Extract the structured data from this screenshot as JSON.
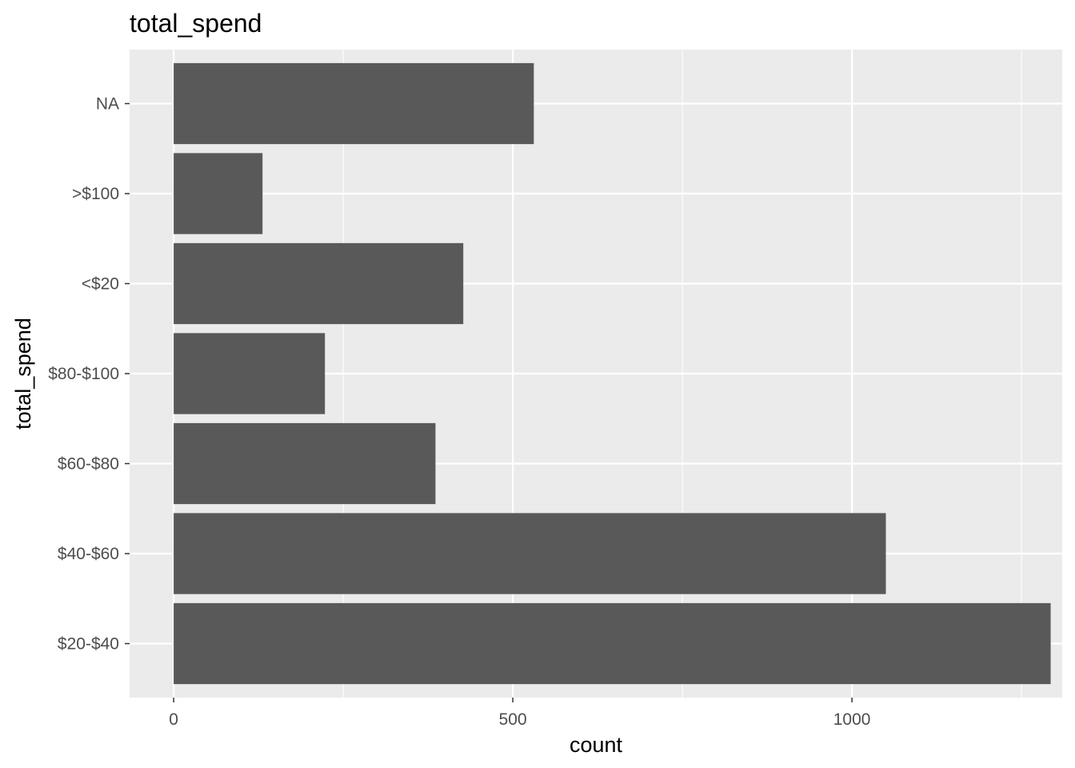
{
  "chart_data": {
    "type": "bar",
    "orientation": "horizontal",
    "title": "total_spend",
    "xlabel": "count",
    "ylabel": "total_spend",
    "categories": [
      "$20-$40",
      "$40-$60",
      "$60-$80",
      "$80-$100",
      "<$20",
      ">$100",
      "NA"
    ],
    "values": [
      1293,
      1050,
      386,
      223,
      427,
      131,
      531
    ],
    "xlim": [
      -65,
      1310
    ],
    "xticks": [
      0,
      500,
      1000
    ],
    "grid": true,
    "legend": "none",
    "colors": {
      "bar": "#595959",
      "panel": "#ebebeb",
      "grid_major": "#ffffff",
      "tick_text": "#4d4d4d",
      "tick_mark": "#333333"
    }
  }
}
